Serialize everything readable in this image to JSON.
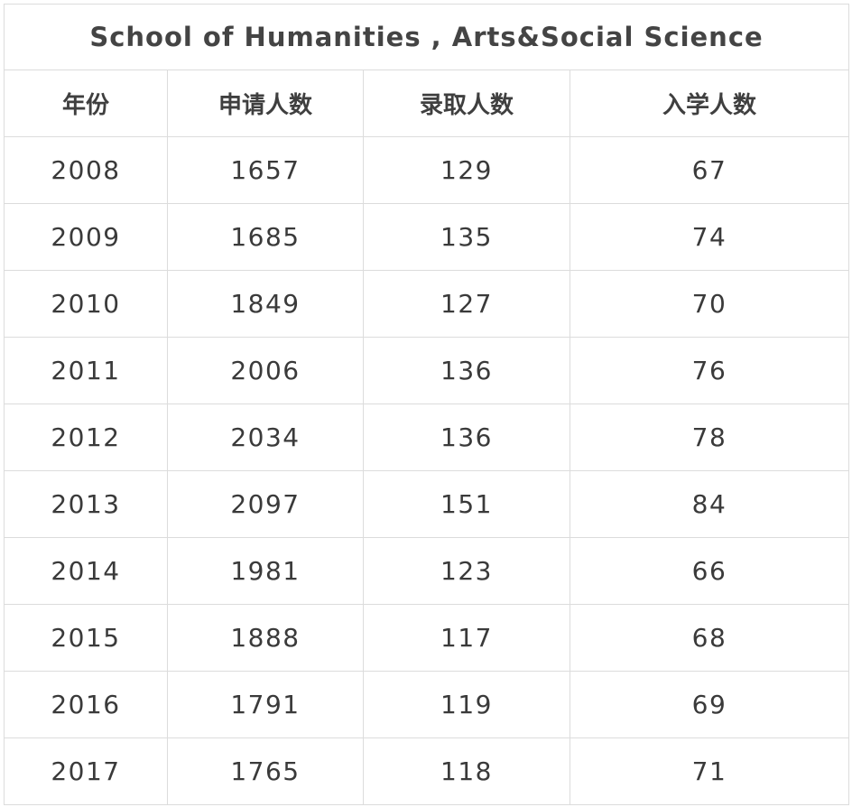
{
  "chart_data": {
    "type": "table",
    "title": "School  of Humanities , Arts&Social Science",
    "columns": [
      "年份",
      "申请人数",
      "录取人数",
      "入学人数"
    ],
    "rows": [
      [
        "2008",
        "1657",
        "129",
        "67"
      ],
      [
        "2009",
        "1685",
        "135",
        "74"
      ],
      [
        "2010",
        "1849",
        "127",
        "70"
      ],
      [
        "2011",
        "2006",
        "136",
        "76"
      ],
      [
        "2012",
        "2034",
        "136",
        "78"
      ],
      [
        "2013",
        "2097",
        "151",
        "84"
      ],
      [
        "2014",
        "1981",
        "123",
        "66"
      ],
      [
        "2015",
        "1888",
        "117",
        "68"
      ],
      [
        "2016",
        "1791",
        "119",
        "69"
      ],
      [
        "2017",
        "1765",
        "118",
        "71"
      ]
    ]
  }
}
